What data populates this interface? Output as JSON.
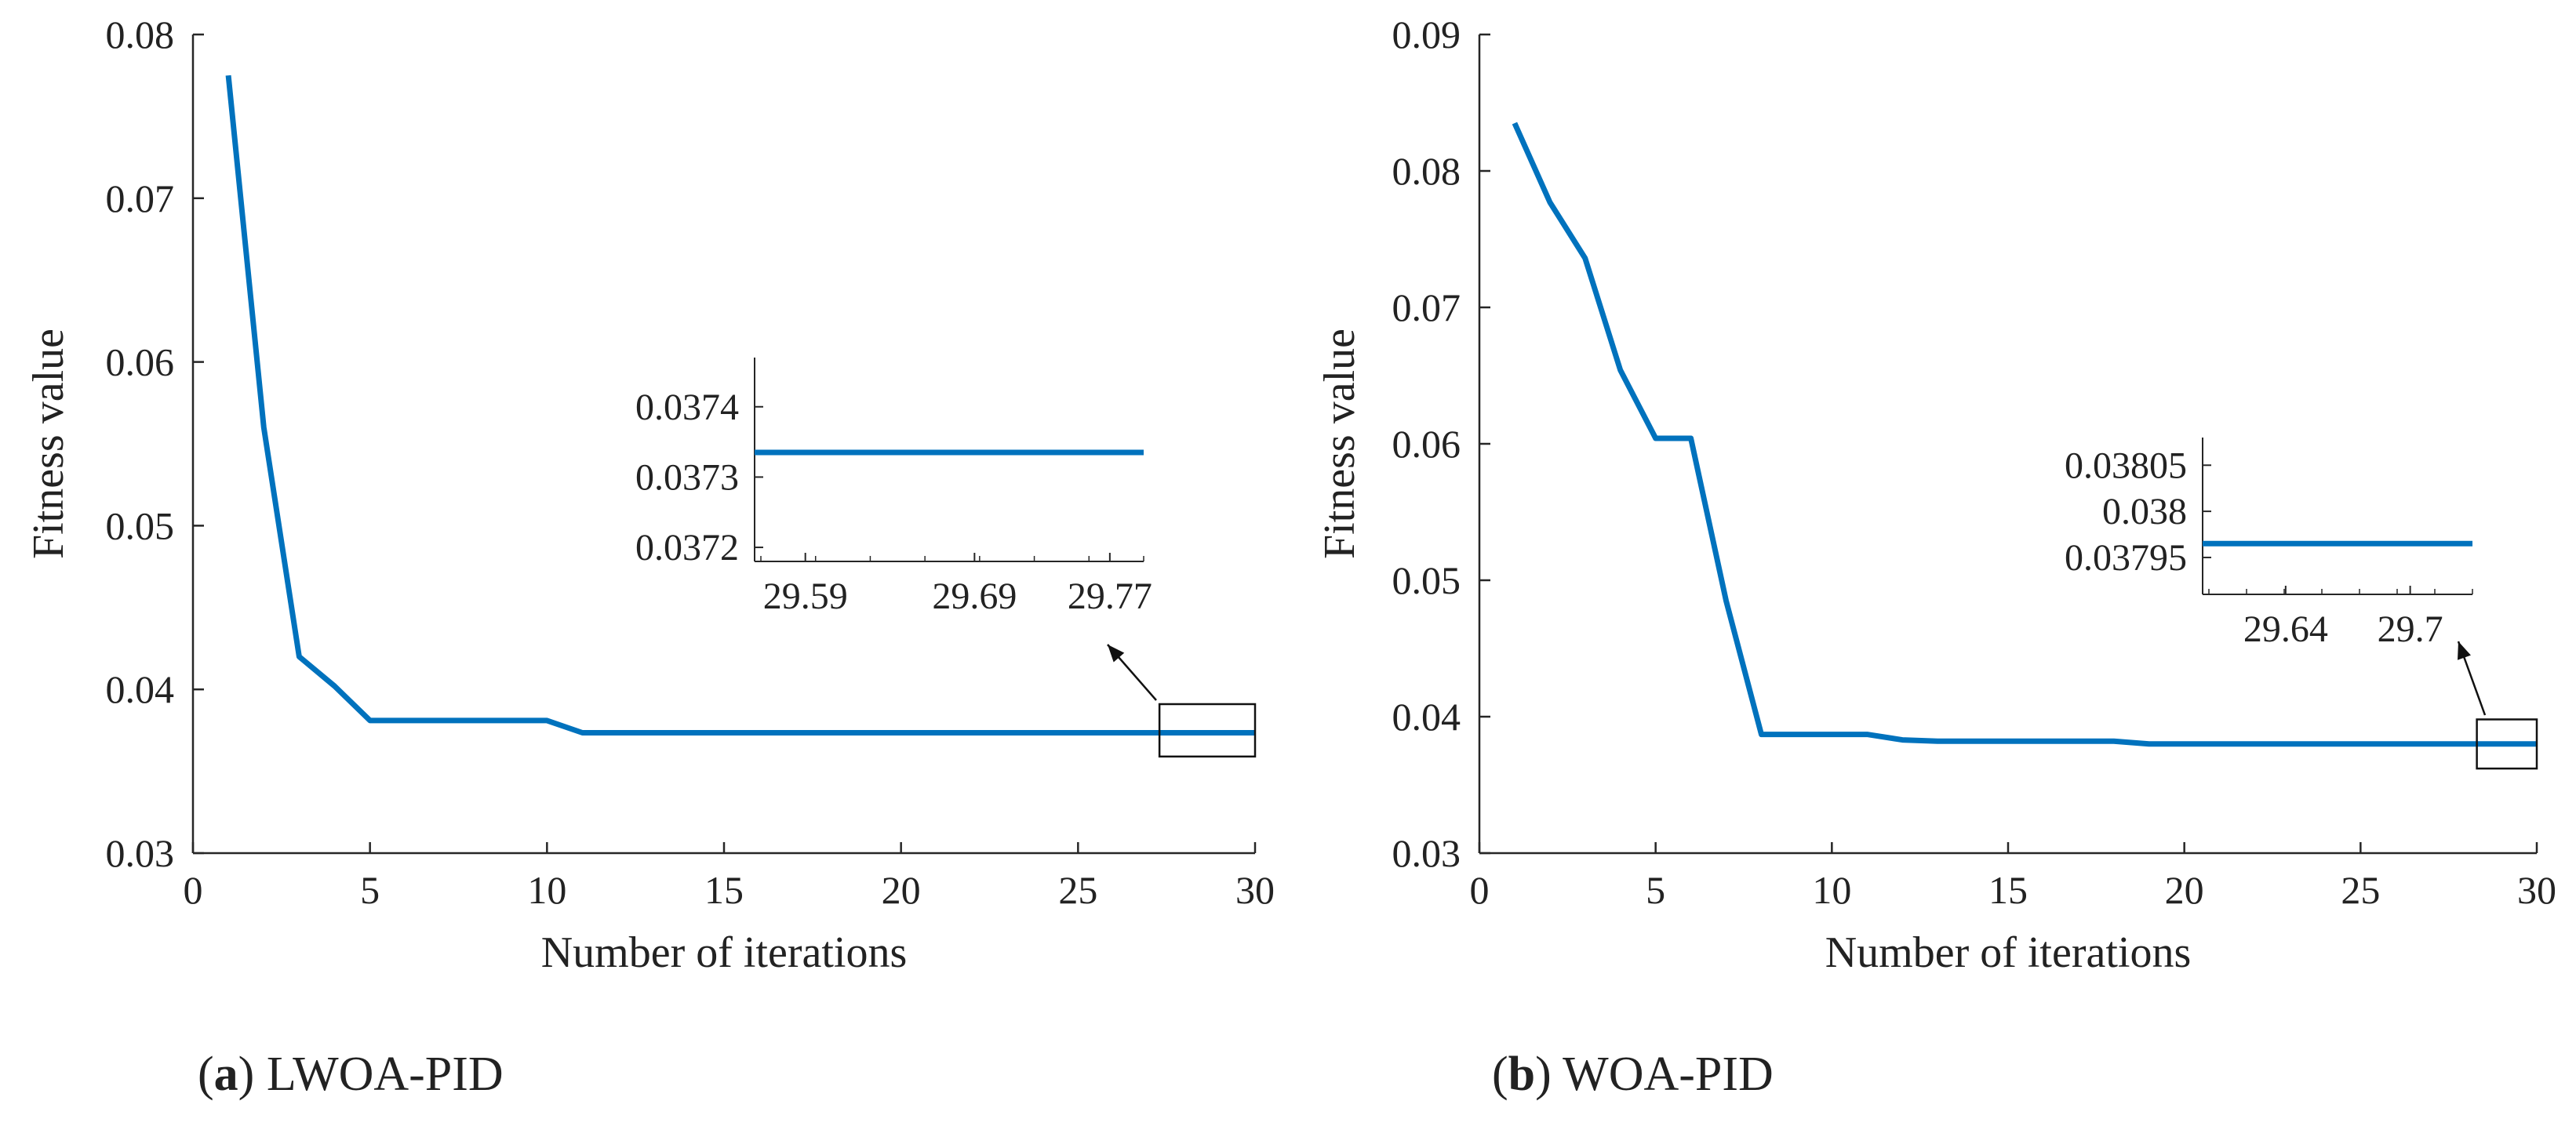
{
  "chart_data": [
    {
      "type": "line",
      "panel_label": "a",
      "caption": "LWOA-PID",
      "xlabel": "Number of iterations",
      "ylabel": "Fitness value",
      "xlim": [
        0,
        30
      ],
      "ylim": [
        0.03,
        0.08
      ],
      "xticks": [
        0,
        5,
        10,
        15,
        20,
        25,
        30
      ],
      "yticks": [
        0.03,
        0.04,
        0.05,
        0.06,
        0.07,
        0.08
      ],
      "ytick_labels": [
        "0.03",
        "0.04",
        "0.05",
        "0.06",
        "0.07",
        "0.08"
      ],
      "grid": false,
      "series": [
        {
          "name": "LWOA-PID",
          "color": "#0072BD",
          "x": [
            1,
            2,
            3,
            4,
            5,
            6,
            7,
            8,
            9,
            10,
            11,
            12,
            13,
            14,
            15,
            16,
            17,
            18,
            19,
            20,
            21,
            22,
            23,
            24,
            25,
            26,
            27,
            28,
            29,
            30
          ],
          "values": [
            0.0775,
            0.056,
            0.042,
            0.0402,
            0.0381,
            0.0381,
            0.0381,
            0.0381,
            0.0381,
            0.0381,
            0.03735,
            0.03735,
            0.03735,
            0.03735,
            0.03735,
            0.03735,
            0.03735,
            0.03735,
            0.03735,
            0.03735,
            0.03735,
            0.03735,
            0.03735,
            0.03735,
            0.03735,
            0.03735,
            0.03735,
            0.03735,
            0.03735,
            0.03735
          ]
        }
      ],
      "zoom_box": {
        "xlim": [
          27.3,
          30
        ],
        "ylim": [
          0.0359,
          0.0391
        ]
      },
      "inset": {
        "xlim": [
          29.56,
          29.79
        ],
        "ylim": [
          0.03718,
          0.03747
        ],
        "xticks": [
          29.59,
          29.69,
          29.77
        ],
        "xtick_labels": [
          "29.59",
          "29.69",
          "29.77"
        ],
        "yticks": [
          0.0372,
          0.0373,
          0.0374
        ],
        "ytick_labels": [
          "0.0372",
          "0.0373",
          "0.0374"
        ],
        "value": 0.037335
      }
    },
    {
      "type": "line",
      "panel_label": "b",
      "caption": "WOA-PID",
      "xlabel": "Number of iterations",
      "ylabel": "Fitness value",
      "xlim": [
        0,
        30
      ],
      "ylim": [
        0.03,
        0.09
      ],
      "xticks": [
        0,
        5,
        10,
        15,
        20,
        25,
        30
      ],
      "yticks": [
        0.03,
        0.04,
        0.05,
        0.06,
        0.07,
        0.08,
        0.09
      ],
      "ytick_labels": [
        "0.03",
        "0.04",
        "0.05",
        "0.06",
        "0.07",
        "0.08",
        "0.09"
      ],
      "grid": false,
      "series": [
        {
          "name": "WOA-PID",
          "color": "#0072BD",
          "x": [
            1,
            2,
            3,
            4,
            5,
            6,
            7,
            8,
            9,
            10,
            11,
            12,
            13,
            14,
            15,
            16,
            17,
            18,
            19,
            20,
            21,
            22,
            23,
            24,
            25,
            26,
            27,
            28,
            29,
            30
          ],
          "values": [
            0.0835,
            0.0777,
            0.0736,
            0.0654,
            0.0604,
            0.0604,
            0.0485,
            0.0387,
            0.0387,
            0.0387,
            0.0387,
            0.0383,
            0.0382,
            0.0382,
            0.0382,
            0.0382,
            0.0382,
            0.0382,
            0.038,
            0.038,
            0.038,
            0.038,
            0.038,
            0.038,
            0.038,
            0.038,
            0.038,
            0.038,
            0.038,
            0.038
          ]
        }
      ],
      "zoom_box": {
        "xlim": [
          28.3,
          30
        ],
        "ylim": [
          0.0362,
          0.0398
        ]
      },
      "inset": {
        "xlim": [
          29.6,
          29.73
        ],
        "ylim": [
          0.03791,
          0.03808
        ],
        "xticks": [
          29.64,
          29.7
        ],
        "xtick_labels": [
          "29.64",
          "29.7"
        ],
        "yticks": [
          0.03795,
          0.038,
          0.03805
        ],
        "ytick_labels": [
          "0.03795",
          "0.038",
          "0.03805"
        ],
        "value": 0.037965
      }
    }
  ]
}
